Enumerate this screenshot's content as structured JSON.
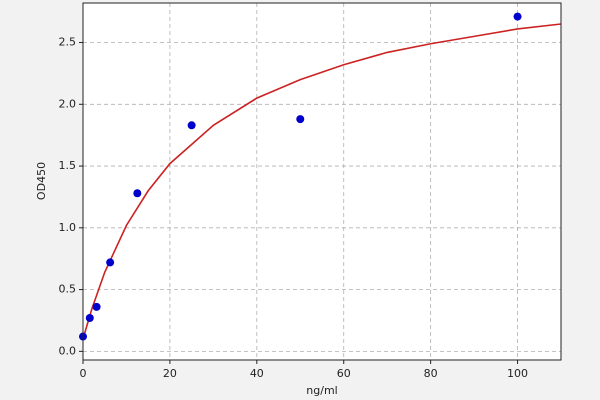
{
  "chart_data": {
    "type": "scatter",
    "xlabel": "ng/ml",
    "ylabel": "OD450",
    "series": [
      {
        "color": "#0000cc",
        "x": [
          0,
          1.5625,
          3.125,
          6.25,
          12.5,
          25,
          50,
          100
        ],
        "values": [
          0.12,
          0.27,
          0.36,
          0.72,
          1.28,
          1.83,
          1.88,
          2.71
        ]
      },
      {
        "color": "#cc2222",
        "type": "line",
        "x": [
          0,
          2,
          5,
          10,
          15,
          20,
          30,
          40,
          50,
          60,
          70,
          80,
          90,
          100,
          110
        ],
        "values": [
          0.1,
          0.34,
          0.64,
          1.02,
          1.3,
          1.52,
          1.83,
          2.05,
          2.2,
          2.32,
          2.42,
          2.49,
          2.55,
          2.61,
          2.65
        ]
      }
    ],
    "xlim": [
      0,
      110
    ],
    "ylim": [
      -0.07,
      2.82
    ],
    "xticks": [
      0,
      20,
      40,
      60,
      80,
      100
    ],
    "yticks": [
      {
        "value": 0,
        "label": "0.0"
      },
      0.5,
      {
        "value": 1,
        "label": "1.0"
      },
      1.5,
      {
        "value": 2,
        "label": "2.0"
      },
      2.5
    ],
    "grid": true
  }
}
